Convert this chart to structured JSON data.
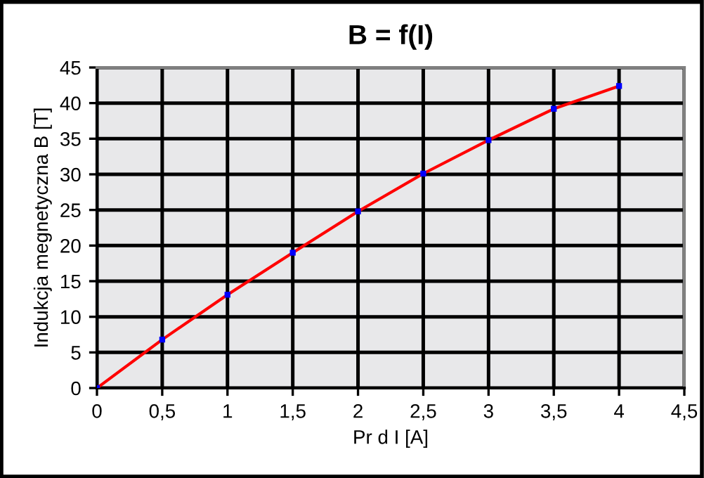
{
  "chart_data": {
    "type": "line",
    "title": "B = f(I)",
    "xlabel": "Pr d I [A]",
    "ylabel": "Indukcja megnetyczna B [T]",
    "x": [
      0,
      0.5,
      1,
      1.5,
      2,
      2.5,
      3,
      3.5,
      4
    ],
    "series": [
      {
        "color": "#ff0000",
        "colors": [
          "#0000ff",
          "#0000ff",
          "#0000ff",
          "#0000ff",
          "#0000ff",
          "#0000ff",
          "#0000ff",
          "#0000ff",
          "#0000ff"
        ],
        "values": [
          0,
          6.8,
          13.1,
          19.0,
          24.8,
          30.1,
          34.8,
          39.2,
          42.4
        ]
      }
    ],
    "xlim": [
      0,
      4.5
    ],
    "xticks": [
      0,
      {
        "value": 0.5,
        "label": "0,5"
      },
      1,
      {
        "value": 1.5,
        "label": "1,5"
      },
      2,
      {
        "value": 2.5,
        "label": "2,5"
      },
      3,
      {
        "value": 3.5,
        "label": "3,5"
      },
      4,
      {
        "value": 4.5,
        "label": "4,5"
      }
    ],
    "ylim": [
      0,
      45
    ],
    "yticks": [
      0,
      5,
      10,
      15,
      20,
      25,
      30,
      35,
      40,
      45
    ],
    "grid": true,
    "marker": "square",
    "line_style": "solid"
  }
}
